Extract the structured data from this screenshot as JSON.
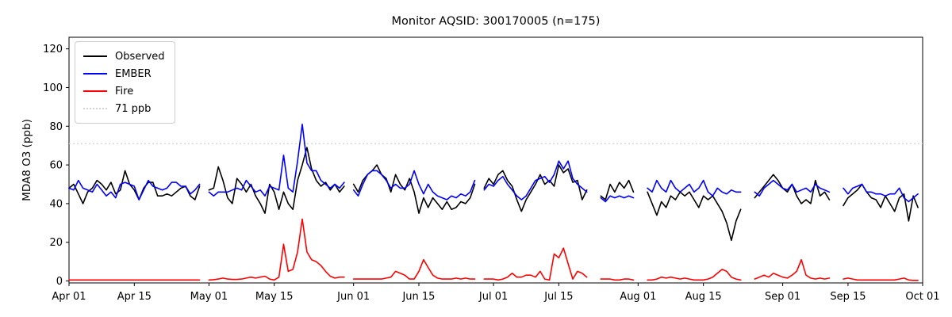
{
  "chart_data": {
    "type": "line",
    "title": "Monitor AQSID: 300170005 (n=175)",
    "xlabel": "",
    "ylabel": "MDA8 O3 (ppb)",
    "ylim": [
      -1,
      126
    ],
    "y_ticks": [
      0,
      20,
      40,
      60,
      80,
      100,
      120
    ],
    "x_start_date": "Apr 01",
    "x_days": 183,
    "x_tick_labels": [
      "Apr 01",
      "Apr 15",
      "May 01",
      "May 15",
      "Jun 01",
      "Jun 15",
      "Jul 01",
      "Jul 15",
      "Aug 01",
      "Aug 15",
      "Sep 01",
      "Sep 15",
      "Oct 01"
    ],
    "x_tick_days": [
      0,
      14,
      30,
      44,
      61,
      75,
      91,
      105,
      122,
      136,
      153,
      167,
      183
    ],
    "grid": false,
    "legend_position": "upper-left",
    "reference_line": {
      "label": "71 ppb",
      "value": 71,
      "color": "#d3d3d3",
      "style": "dotted"
    },
    "series": [
      {
        "name": "Observed",
        "color": "#000000",
        "values": [
          48,
          50,
          45,
          40,
          46,
          48,
          52,
          50,
          47,
          51,
          45,
          47,
          57,
          50,
          47,
          42,
          48,
          51,
          51,
          44,
          44,
          45,
          44,
          46,
          48,
          49,
          44,
          42,
          49,
          null,
          47,
          48,
          59,
          52,
          43,
          40,
          53,
          50,
          46,
          50,
          44,
          40,
          35,
          50,
          46,
          37,
          46,
          40,
          37,
          52,
          60,
          69,
          58,
          52,
          49,
          51,
          47,
          50,
          46,
          49,
          null,
          50,
          46,
          52,
          55,
          57,
          60,
          55,
          53,
          46,
          55,
          50,
          47,
          53,
          46,
          35,
          43,
          38,
          43,
          40,
          37,
          41,
          37,
          38,
          41,
          40,
          43,
          50,
          null,
          48,
          53,
          50,
          55,
          57,
          52,
          49,
          42,
          36,
          42,
          46,
          50,
          55,
          50,
          52,
          49,
          60,
          56,
          58,
          51,
          52,
          42,
          47,
          null,
          null,
          44,
          42,
          50,
          46,
          51,
          48,
          52,
          46,
          null,
          null,
          46,
          40,
          34,
          41,
          38,
          44,
          42,
          46,
          44,
          46,
          42,
          38,
          44,
          42,
          44,
          40,
          36,
          30,
          21,
          31,
          37,
          null,
          null,
          43,
          46,
          49,
          52,
          55,
          52,
          48,
          46,
          50,
          44,
          40,
          42,
          40,
          52,
          44,
          46,
          42,
          null,
          null,
          39,
          43,
          45,
          47,
          50,
          46,
          43,
          42,
          38,
          44,
          40,
          36,
          43,
          45,
          31,
          44,
          38
        ]
      },
      {
        "name": "EMBER",
        "color": "#0000ff",
        "values": [
          48,
          47,
          52,
          48,
          47,
          46,
          50,
          47,
          44,
          46,
          43,
          50,
          51,
          50,
          49,
          42,
          47,
          52,
          49,
          48,
          47,
          48,
          51,
          51,
          49,
          49,
          45,
          47,
          50,
          null,
          46,
          44,
          46,
          46,
          46,
          47,
          48,
          47,
          52,
          49,
          46,
          47,
          44,
          49,
          48,
          47,
          65,
          48,
          46,
          62,
          81,
          61,
          57,
          57,
          52,
          50,
          48,
          50,
          48,
          51,
          null,
          47,
          44,
          50,
          55,
          57,
          57,
          55,
          52,
          48,
          50,
          48,
          48,
          50,
          57,
          50,
          45,
          50,
          46,
          44,
          43,
          42,
          44,
          43,
          45,
          44,
          46,
          52,
          null,
          47,
          50,
          49,
          52,
          54,
          50,
          47,
          44,
          42,
          44,
          48,
          52,
          53,
          54,
          51,
          55,
          62,
          58,
          62,
          53,
          50,
          48,
          46,
          null,
          null,
          43,
          41,
          44,
          43,
          44,
          43,
          44,
          43,
          null,
          null,
          48,
          46,
          52,
          48,
          46,
          52,
          48,
          46,
          48,
          50,
          46,
          48,
          52,
          46,
          44,
          48,
          46,
          45,
          47,
          46,
          46,
          null,
          null,
          46,
          44,
          48,
          50,
          52,
          50,
          48,
          47,
          50,
          46,
          47,
          48,
          46,
          50,
          48,
          47,
          46,
          null,
          null,
          48,
          45,
          48,
          49,
          50,
          46,
          46,
          45,
          45,
          44,
          45,
          45,
          48,
          43,
          41,
          43,
          45
        ]
      },
      {
        "name": "Fire",
        "color": "#ff0000",
        "values": [
          0.5,
          0.5,
          0.5,
          0.5,
          0.5,
          0.5,
          0.5,
          0.5,
          0.5,
          0.5,
          0.5,
          0.5,
          0.5,
          0.5,
          0.5,
          0.5,
          0.5,
          0.5,
          0.5,
          0.5,
          0.5,
          0.5,
          0.5,
          0.5,
          0.5,
          0.5,
          0.5,
          0.5,
          0.5,
          null,
          0.5,
          0.7,
          1,
          1.5,
          1,
          0.8,
          0.8,
          1,
          1.5,
          2,
          1.5,
          2,
          2.5,
          1,
          0.5,
          2,
          19,
          5,
          6,
          15,
          32,
          15,
          11,
          10,
          8,
          5,
          2.5,
          1.5,
          2,
          2,
          null,
          1,
          1,
          1,
          1,
          1,
          1,
          1,
          1.5,
          2,
          5,
          4,
          3,
          1,
          1,
          5,
          11,
          7,
          3,
          1.5,
          1,
          1,
          1,
          1.5,
          1,
          1.5,
          1,
          1,
          null,
          1,
          1,
          1,
          0.5,
          1,
          2,
          4,
          2,
          2,
          3,
          3,
          2,
          5,
          1,
          0.5,
          14,
          12,
          17,
          9,
          1,
          5,
          4,
          2,
          null,
          null,
          1,
          1,
          1,
          0.5,
          0.5,
          1,
          1,
          0.5,
          null,
          null,
          0.5,
          0.5,
          1,
          2,
          1.5,
          2,
          1.5,
          1,
          1.5,
          1,
          0.5,
          0.5,
          0.5,
          1,
          2,
          4,
          6,
          5,
          2,
          1,
          0.5,
          null,
          null,
          1,
          2,
          3,
          2,
          4,
          3,
          2,
          1.5,
          3,
          5,
          11,
          3,
          1.5,
          1,
          1.5,
          1,
          1.5,
          null,
          null,
          1,
          1.5,
          1,
          0.5,
          0.5,
          0.5,
          0.5,
          0.5,
          0.5,
          0.5,
          0.5,
          0.5,
          1,
          1.5,
          0.5,
          0.3,
          0.3
        ]
      }
    ]
  }
}
